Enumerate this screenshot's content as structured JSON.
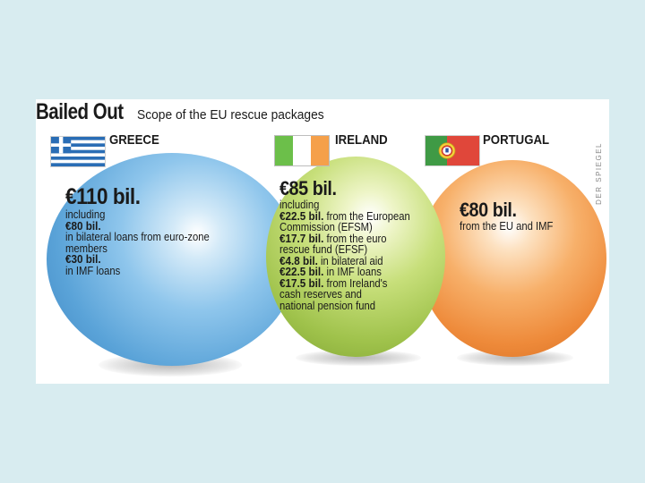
{
  "title": "Bailed Out",
  "subtitle": "Scope of the EU rescue packages",
  "credit": "DER SPIEGEL",
  "colors": {
    "greece_sphere": "#5aa3d8",
    "ireland_sphere": "#9fc24b",
    "portugal_sphere": "#ee8a3a",
    "background": "#d8ecf0"
  },
  "countries": [
    {
      "name": "GREECE",
      "flag": "greece-flag-icon",
      "total": "€110 bil.",
      "lines": [
        {
          "text": "including"
        },
        {
          "amount": "€80 bil."
        },
        {
          "text": "in bilateral loans from euro-zone"
        },
        {
          "text": "members"
        },
        {
          "amount": "€30 bil."
        },
        {
          "text": "in IMF loans"
        }
      ]
    },
    {
      "name": "IRELAND",
      "flag": "ireland-flag-icon",
      "total": "€85 bil.",
      "lines": [
        {
          "text": "including"
        },
        {
          "amount": "€22.5 bil.",
          "text": " from the European"
        },
        {
          "text": "Commission (EFSM)"
        },
        {
          "amount": "€17.7 bil.",
          "text": " from the euro"
        },
        {
          "text": "rescue fund (EFSF)"
        },
        {
          "amount": "€4.8 bil.",
          "text": " in bilateral aid"
        },
        {
          "amount": "€22.5 bil.",
          "text": " in IMF loans"
        },
        {
          "amount": "€17.5 bil.",
          "text": " from Ireland's"
        },
        {
          "text": "cash reserves and"
        },
        {
          "text": "national pension fund"
        }
      ]
    },
    {
      "name": "PORTUGAL",
      "flag": "portugal-flag-icon",
      "total": "€80 bil.",
      "lines": [
        {
          "text": "from the EU and IMF"
        }
      ]
    }
  ]
}
